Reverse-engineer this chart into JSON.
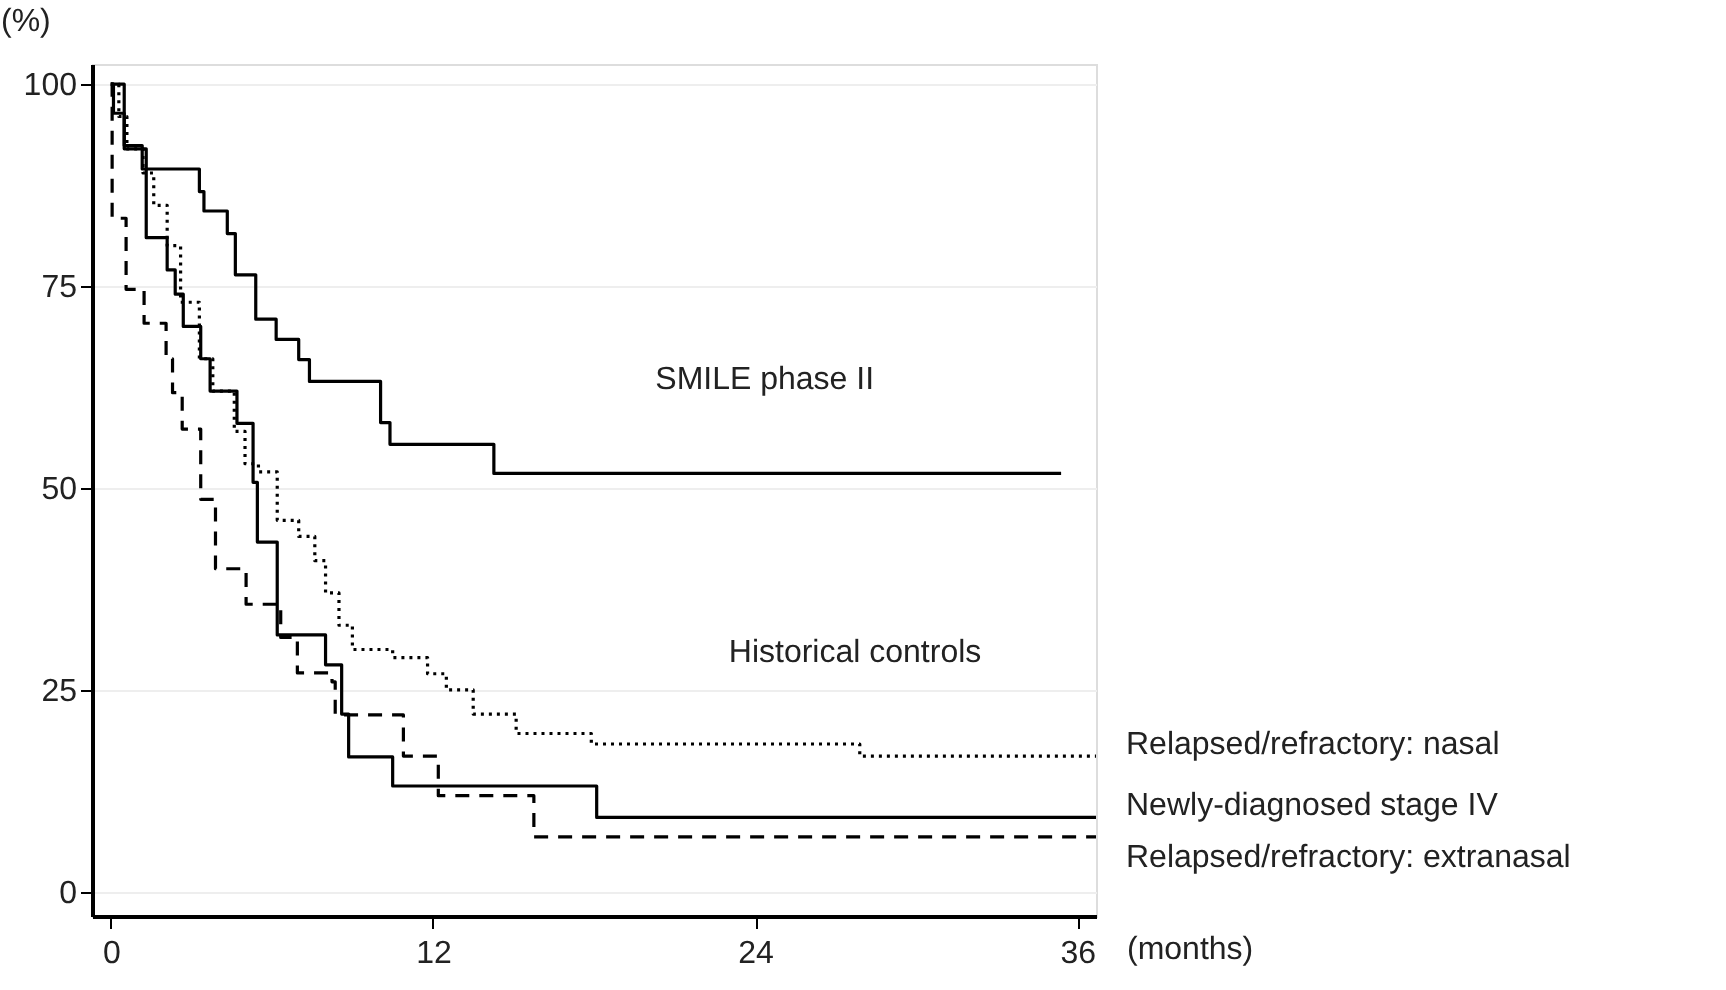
{
  "chart_data": {
    "type": "step",
    "xlabel": "(months)",
    "ylabel": "(%)",
    "xlim": [
      -0.7,
      36.7
    ],
    "ylim": [
      -3,
      102.5
    ],
    "xticks": [
      0,
      12,
      24,
      36
    ],
    "yticks": [
      0,
      25,
      50,
      75,
      100
    ],
    "grid": "y",
    "annotations": [
      "SMILE phase II",
      "Historical controls"
    ],
    "series": [
      {
        "color": "#000000",
        "line_style": "solid",
        "x": [
          0,
          0.5,
          1.17,
          3.3,
          3.47,
          4.34,
          4.64,
          5.4,
          6.16,
          7.0,
          7.4,
          10.05,
          10.4,
          14.27,
          35.4
        ],
        "values": [
          100,
          92.4,
          89.5,
          86.7,
          84.3,
          81.5,
          76.4,
          70.9,
          68.4,
          65.9,
          63.2,
          58.1,
          55.4,
          51.8,
          51.8
        ]
      },
      {
        "name": "Relapsed/refractory: nasal",
        "color": "#000000",
        "line_style": "dotted",
        "x": [
          0,
          0.3,
          0.6,
          1.2,
          1.6,
          2.1,
          2.6,
          3.3,
          3.8,
          4.6,
          5.0,
          5.5,
          6.2,
          7.0,
          7.6,
          8.0,
          8.5,
          9.0,
          10.5,
          11.8,
          12.5,
          13.5,
          15.1,
          17.9,
          27.9,
          36.7
        ],
        "values": [
          100,
          96,
          92,
          89,
          85,
          80,
          73,
          66,
          62,
          57,
          53,
          52,
          46,
          44,
          41,
          37,
          33,
          30,
          29,
          27,
          25,
          22,
          19.6,
          18.3,
          16.8,
          16.8
        ]
      },
      {
        "name": "Newly-diagnosed stage IV",
        "color": "#000000",
        "line_style": "solid",
        "x": [
          0,
          0.1,
          0.5,
          1.32,
          2.1,
          2.4,
          2.7,
          3.35,
          3.7,
          4.7,
          5.3,
          5.46,
          6.2,
          8.0,
          8.6,
          8.86,
          10.5,
          18.1,
          36.7
        ],
        "values": [
          100,
          96.4,
          92,
          81,
          77,
          74,
          70,
          66,
          62,
          58,
          50.7,
          43.3,
          31.8,
          28.1,
          22,
          16.7,
          13.1,
          9.2,
          9.2
        ]
      },
      {
        "name": "Relapsed/refractory: extranasal",
        "color": "#000000",
        "line_style": "dashed",
        "x": [
          0,
          0.05,
          0.57,
          1.24,
          2.06,
          2.3,
          2.66,
          3.35,
          3.9,
          5.04,
          6.33,
          6.95,
          8.24,
          8.36,
          10.9,
          12.2,
          15.76,
          36.7
        ],
        "values": [
          100,
          83.4,
          74.6,
          70.4,
          66,
          61.8,
          57.3,
          48.6,
          40,
          35.6,
          31.5,
          27.1,
          26,
          21.9,
          16.8,
          11.9,
          6.8,
          6.8
        ]
      }
    ]
  }
}
